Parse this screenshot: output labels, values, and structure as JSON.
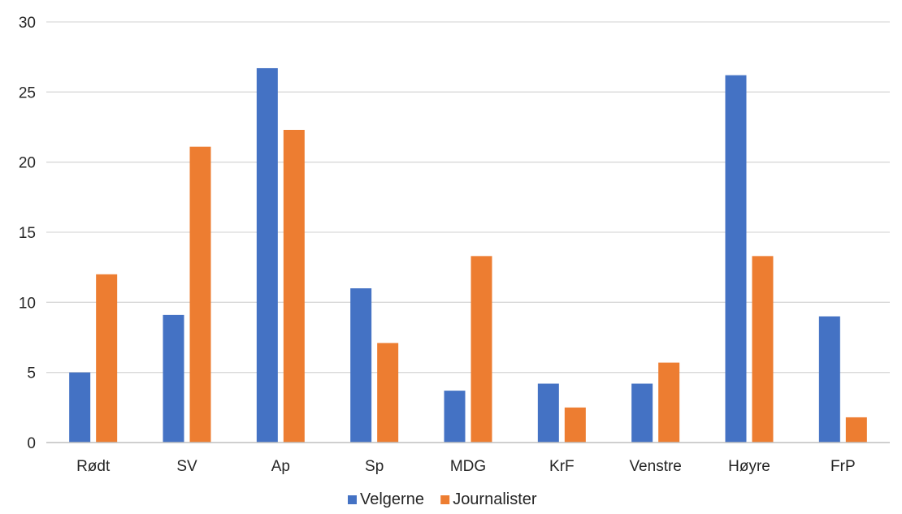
{
  "chart_data": {
    "type": "bar",
    "title": "",
    "xlabel": "",
    "ylabel": "",
    "categories": [
      "Rødt",
      "SV",
      "Ap",
      "Sp",
      "MDG",
      "KrF",
      "Venstre",
      "Høyre",
      "FrP"
    ],
    "ylim": [
      0,
      30
    ],
    "yticks": [
      0,
      5,
      10,
      15,
      20,
      25,
      30
    ],
    "grid": true,
    "legend_position": "bottom",
    "series": [
      {
        "name": "Velgerne",
        "color": "#4472C4",
        "values": [
          5.0,
          9.1,
          26.7,
          11.0,
          3.7,
          4.2,
          4.2,
          26.2,
          9.0
        ]
      },
      {
        "name": "Journalister",
        "color": "#ED7D31",
        "values": [
          12.0,
          21.1,
          22.3,
          7.1,
          13.3,
          2.5,
          5.7,
          13.3,
          1.8
        ]
      }
    ],
    "colors": {
      "gridline": "#D9D9D9",
      "axis": "#BFBFBF",
      "text": "#262626"
    }
  }
}
